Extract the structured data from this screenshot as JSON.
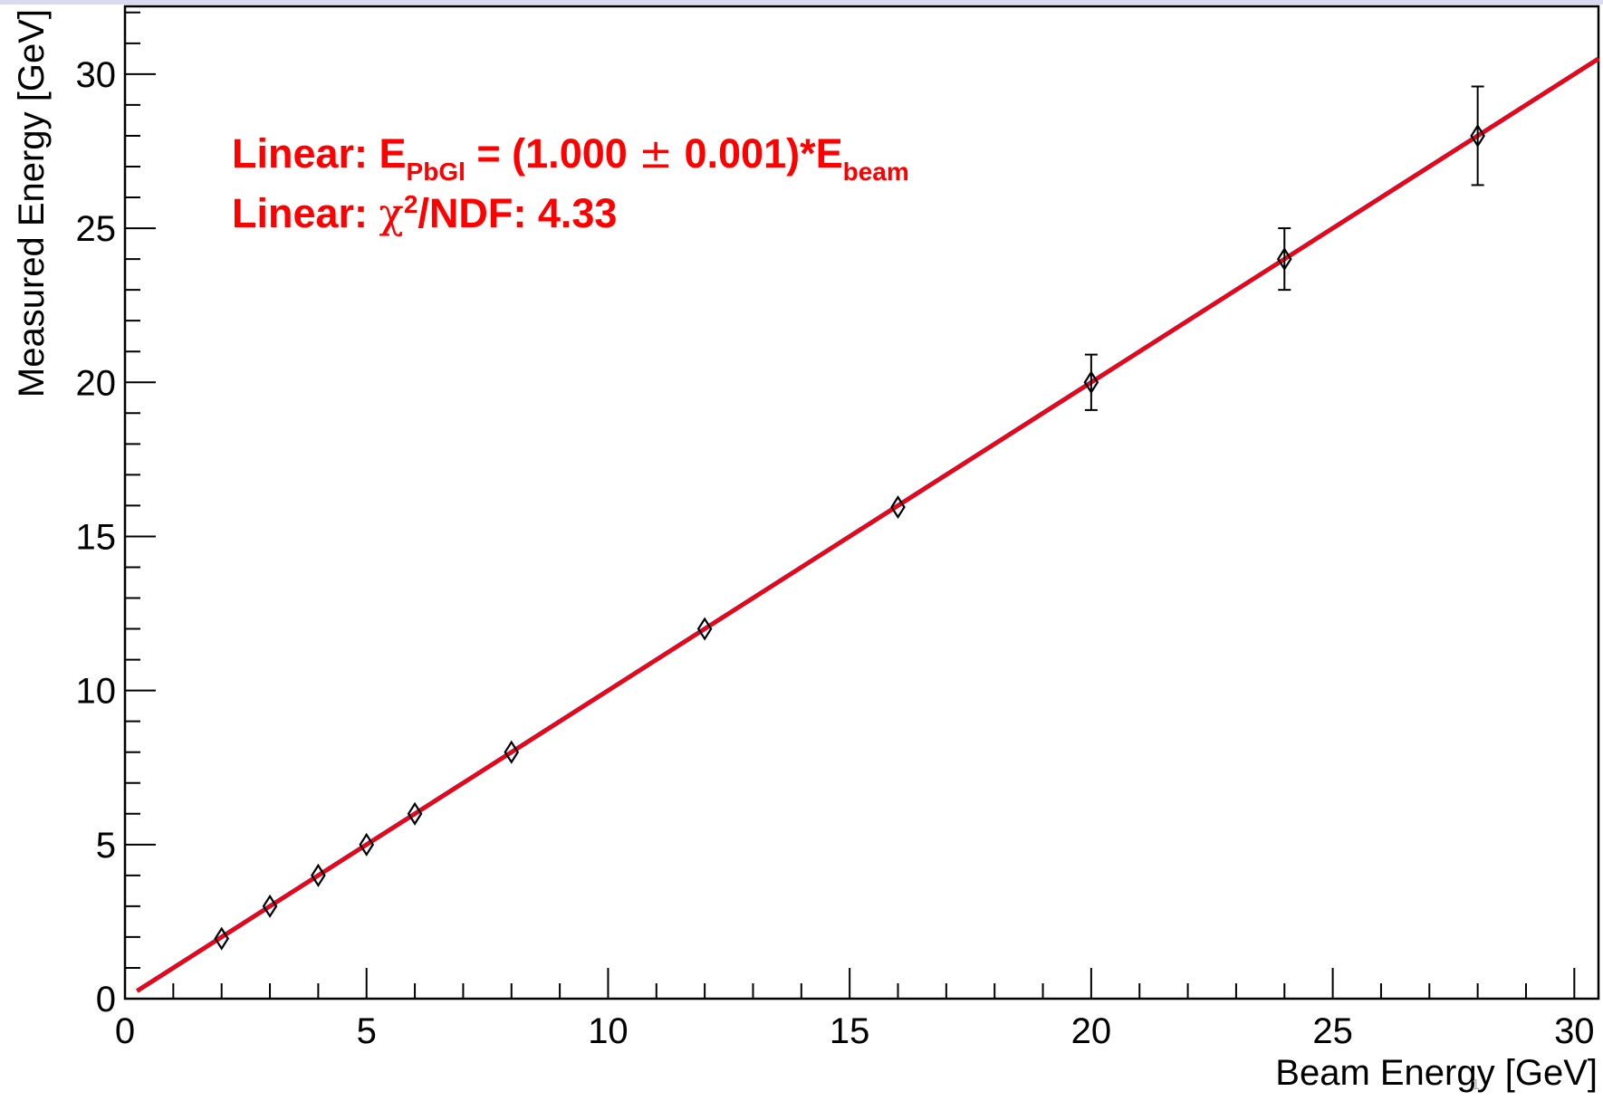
{
  "chart_data": {
    "type": "scatter",
    "xlabel": "Beam Energy [GeV]",
    "ylabel": "Measured Energy [GeV]",
    "xlim": [
      0,
      30.5
    ],
    "ylim": [
      0,
      32.2
    ],
    "x_ticks": [
      0,
      5,
      10,
      15,
      20,
      25,
      30
    ],
    "y_ticks": [
      0,
      5,
      10,
      15,
      20,
      25,
      30
    ],
    "x_tick_labels": [
      "0",
      "5",
      "10",
      "15",
      "20",
      "25",
      "30"
    ],
    "y_tick_labels": [
      "0",
      "5",
      "10",
      "15",
      "20",
      "25",
      "30"
    ],
    "grid": false,
    "legend": "none",
    "series": [
      {
        "marker": "open-diamond",
        "color": "#000000",
        "x": [
          2,
          3,
          4,
          5,
          6,
          8,
          12,
          16,
          20,
          24,
          28
        ],
        "y": [
          1.95,
          3.0,
          4.0,
          5.0,
          6.0,
          8.0,
          12.0,
          15.95,
          20.0,
          24.0,
          28.0
        ],
        "y_err": [
          0.1,
          0.1,
          0.1,
          0.15,
          0.15,
          0.2,
          0.25,
          0.3,
          0.9,
          1.0,
          1.6
        ]
      }
    ],
    "fit_line": {
      "color": "#ff0000",
      "underline_color": "#3333cc",
      "slope": 1.0,
      "x_range": [
        0.25,
        30.5
      ]
    },
    "annotations": {
      "color": "#ff0000",
      "line1": {
        "prefix": "Linear: E",
        "sub1": "PbGl",
        "middle": " = (1.000 ",
        "pm": "±",
        "after": " 0.001)*E",
        "sub2": "beam"
      },
      "line2": {
        "prefix": "Linear: ",
        "chi": "χ",
        "sup": "2",
        "suffix": "/NDF: 4.33"
      }
    }
  },
  "page_number": "1"
}
